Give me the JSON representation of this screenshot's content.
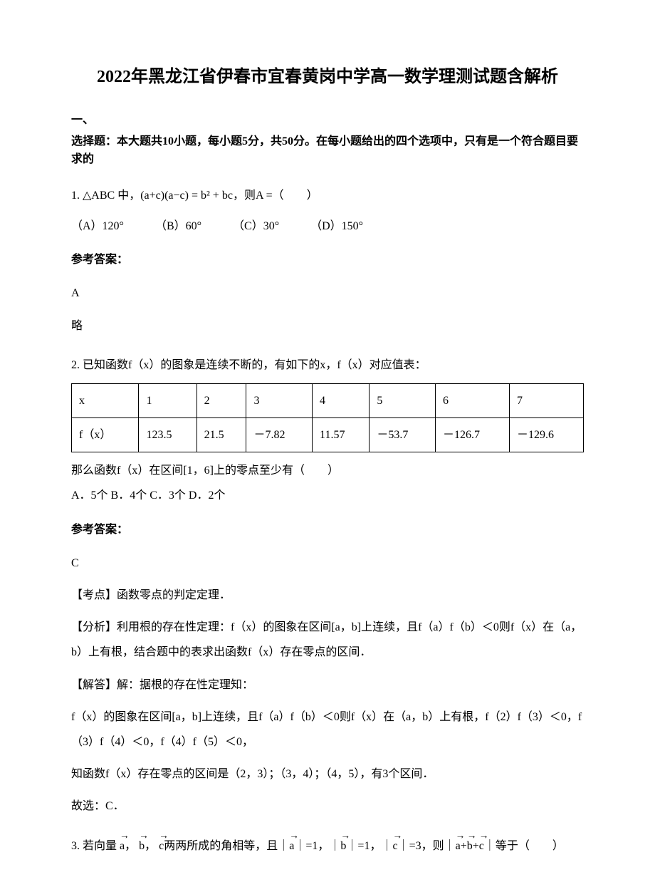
{
  "title": "2022年黑龙江省伊春市宜春黄岗中学高一数学理测试题含解析",
  "section_heading_1": "一、",
  "section_heading_2": "选择题：本大题共10小题，每小题5分，共50分。在每小题给出的四个选项中，只有是一个符合题目要求的",
  "q1": {
    "prefix": "1. ",
    "text_before": "△ABC 中，",
    "formula": "(a+c)(a−c) = b² + bc",
    "text_after": "，则A =（　　）",
    "opt_a": "（A）120°",
    "opt_b": "（B）60°",
    "opt_c": "（C）30°",
    "opt_d": "（D）150°",
    "answer_label": "参考答案：",
    "answer": "A",
    "explanation": "略"
  },
  "q2": {
    "prefix": "2. ",
    "text": "已知函数f（x）的图象是连续不断的，有如下的x，f（x）对应值表：",
    "table": {
      "row1": [
        "x",
        "1",
        "2",
        "3",
        "4",
        "5",
        "6",
        "7"
      ],
      "row2": [
        "f（x）",
        "123.5",
        "21.5",
        "－7.82",
        "11.57",
        "－53.7",
        "－126.7",
        "－129.6"
      ]
    },
    "text2": "那么函数f（x）在区间[1，6]上的零点至少有（　　）",
    "options": "A．5个 B．4个 C．3个 D．2个",
    "answer_label": "参考答案：",
    "answer": "C",
    "exp1": "【考点】函数零点的判定定理．",
    "exp2": "【分析】利用根的存在性定理：f（x）的图象在区间[a，b]上连续，且f（a）f（b）＜0则f（x）在（a，b）上有根，结合题中的表求出函数f（x）存在零点的区间．",
    "exp3": "【解答】解：据根的存在性定理知：",
    "exp4": "f（x）的图象在区间[a，b]上连续，且f（a）f（b）＜0则f（x）在（a，b）上有根，f（2）f（3）＜0，f（3）f（4）＜0，f（4）f（5）＜0，",
    "exp5": "知函数f（x）存在零点的区间是（2，3）；（3，4）；（4，5），有3个区间．",
    "exp6": "故选：C．"
  },
  "q3": {
    "prefix": "3. ",
    "text_before": "若向量",
    "vec_a": "a",
    "comma1": "，",
    "vec_b": "b",
    "comma2": "，",
    "vec_c": "c",
    "text_mid": "两两所成的角相等，且｜",
    "eq1": "｜=1，｜",
    "eq2": "｜=1，｜",
    "eq3": "｜=3，则｜",
    "text_end": "｜等于（　　）"
  }
}
